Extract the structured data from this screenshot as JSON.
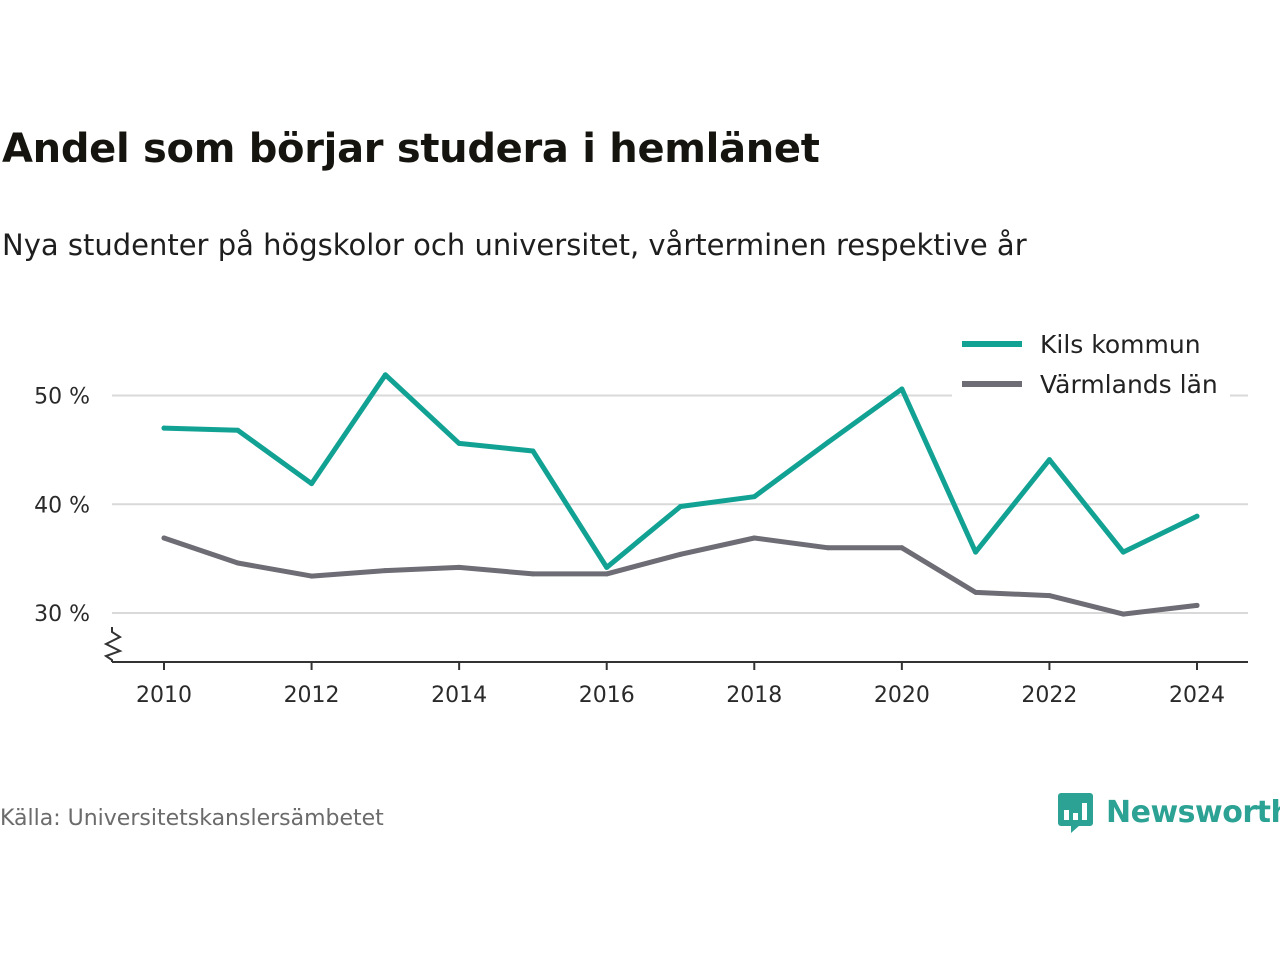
{
  "header": {
    "title": "Andel som börjar studera i hemlänet",
    "subtitle": "Nya studenter på högskolor och universitet, vårterminen respektive år"
  },
  "footer": {
    "source": "Källa: Universitetskanslersämbetet",
    "brand": "Newsworthy"
  },
  "colors": {
    "kils": "#12a294",
    "varmland": "#6e6c74",
    "grid": "#d9d9d9",
    "axis": "#333333",
    "brand": "#2ba294"
  },
  "chart_data": {
    "type": "line",
    "title": "Andel som börjar studera i hemlänet",
    "subtitle": "Nya studenter på högskolor och universitet, vårterminen respektive år",
    "xlabel": "",
    "ylabel": "",
    "x": [
      2010,
      2011,
      2012,
      2013,
      2014,
      2015,
      2016,
      2017,
      2018,
      2019,
      2020,
      2021,
      2022,
      2023,
      2024
    ],
    "x_ticks": [
      2010,
      2012,
      2014,
      2016,
      2018,
      2020,
      2022,
      2024
    ],
    "x_tick_labels": [
      "2010",
      "2012",
      "2014",
      "2016",
      "2018",
      "2020",
      "2022",
      "2024"
    ],
    "y_ticks": [
      30,
      40,
      50
    ],
    "y_tick_labels": [
      "30 %",
      "40 %",
      "50 %"
    ],
    "ylim": [
      25.5,
      54
    ],
    "y_axis_break": true,
    "grid": "horizontal",
    "legend_position": "top-right",
    "series": [
      {
        "name": "Kils kommun",
        "color": "#12a294",
        "values": [
          47.0,
          46.8,
          41.9,
          51.9,
          45.6,
          44.9,
          34.2,
          39.8,
          40.7,
          45.7,
          50.6,
          35.6,
          44.1,
          35.6,
          38.9
        ]
      },
      {
        "name": "Värmlands län",
        "color": "#6e6c74",
        "values": [
          36.9,
          34.6,
          33.4,
          33.9,
          34.2,
          33.6,
          33.6,
          35.4,
          36.9,
          36.0,
          36.0,
          31.9,
          31.6,
          29.9,
          30.7
        ]
      }
    ]
  }
}
